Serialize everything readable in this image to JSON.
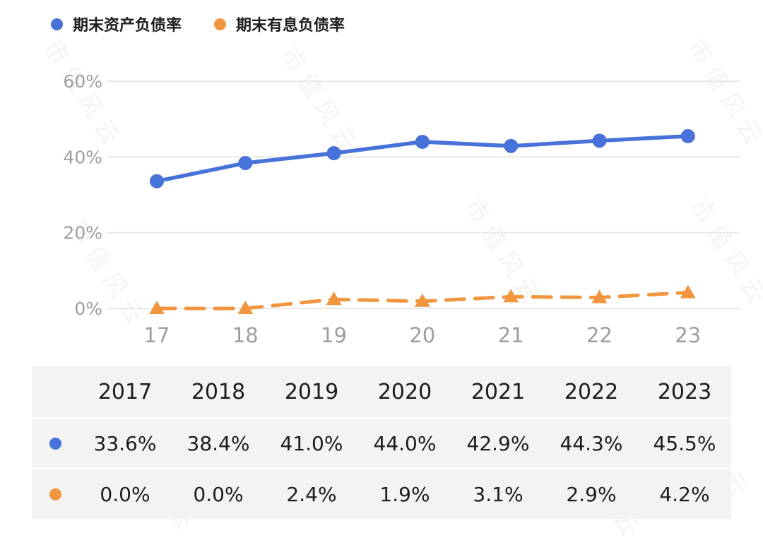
{
  "watermark": "市值风云",
  "legend": [
    {
      "label": "期末资产负债率",
      "color": "#4672d9",
      "marker": "circle"
    },
    {
      "label": "期末有息负债率",
      "color": "#f2953f",
      "marker": "circle"
    }
  ],
  "chart_data": {
    "type": "line",
    "x": [
      2017,
      2018,
      2019,
      2020,
      2021,
      2022,
      2023
    ],
    "x_tick_labels": [
      "17",
      "18",
      "19",
      "20",
      "21",
      "22",
      "23"
    ],
    "y_ticks": [
      0,
      20,
      40,
      60
    ],
    "y_tick_labels": [
      "0%",
      "20%",
      "40%",
      "60%"
    ],
    "ylim": [
      0,
      60
    ],
    "grid": true,
    "legend_position": "top-left",
    "series": [
      {
        "name": "期末资产负债率",
        "color": "#4672d9",
        "style": "solid",
        "marker": "circle",
        "values": [
          33.6,
          38.4,
          41.0,
          44.0,
          42.9,
          44.3,
          45.5
        ]
      },
      {
        "name": "期末有息负债率",
        "color": "#f2953f",
        "style": "dashed",
        "marker": "triangle",
        "values": [
          0.0,
          0.0,
          2.4,
          1.9,
          3.1,
          2.9,
          4.2
        ]
      }
    ]
  },
  "table": {
    "years": [
      "2017",
      "2018",
      "2019",
      "2020",
      "2021",
      "2022",
      "2023"
    ],
    "rows": [
      {
        "series": "期末资产负债率",
        "color": "#4672d9",
        "values": [
          "33.6%",
          "38.4%",
          "41.0%",
          "44.0%",
          "42.9%",
          "44.3%",
          "45.5%"
        ]
      },
      {
        "series": "期末有息负债率",
        "color": "#f2953f",
        "values": [
          "0.0%",
          "0.0%",
          "2.4%",
          "1.9%",
          "3.1%",
          "2.9%",
          "4.2%"
        ]
      }
    ]
  }
}
